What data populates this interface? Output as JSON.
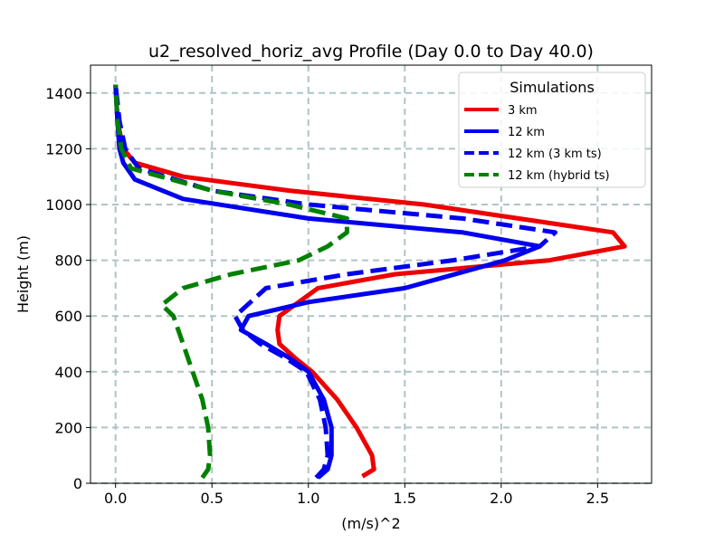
{
  "chart_data": {
    "type": "line",
    "title": "u2_resolved_horiz_avg Profile (Day 0.0 to Day 40.0)",
    "xlabel": "(m/s)^2",
    "ylabel": "Height (m)",
    "xlim": [
      -0.13,
      2.78
    ],
    "ylim": [
      0,
      1500
    ],
    "xticks": [
      0.0,
      0.5,
      1.0,
      1.5,
      2.0,
      2.5
    ],
    "xtick_labels": [
      "0.0",
      "0.5",
      "1.0",
      "1.5",
      "2.0",
      "2.5"
    ],
    "yticks": [
      0,
      200,
      400,
      600,
      800,
      1000,
      1200,
      1400
    ],
    "ytick_labels": [
      "0",
      "200",
      "400",
      "600",
      "800",
      "1000",
      "1200",
      "1400"
    ],
    "grid": true,
    "legend": {
      "title": "Simulations",
      "placement": "top-right"
    },
    "series": [
      {
        "name": "3 km",
        "color": "#ee0000",
        "dash": "solid",
        "points": [
          [
            1.28,
            25
          ],
          [
            1.34,
            50
          ],
          [
            1.33,
            100
          ],
          [
            1.25,
            200
          ],
          [
            1.15,
            300
          ],
          [
            1.02,
            400
          ],
          [
            0.93,
            450
          ],
          [
            0.85,
            500
          ],
          [
            0.84,
            550
          ],
          [
            0.85,
            600
          ],
          [
            1.05,
            700
          ],
          [
            1.45,
            750
          ],
          [
            2.25,
            800
          ],
          [
            2.64,
            850
          ],
          [
            2.58,
            900
          ],
          [
            1.6,
            1000
          ],
          [
            0.9,
            1050
          ],
          [
            0.35,
            1100
          ],
          [
            0.1,
            1150
          ],
          [
            0.04,
            1200
          ],
          [
            0.01,
            1300
          ],
          [
            0.0,
            1430
          ]
        ]
      },
      {
        "name": "12 km",
        "color": "#0000ee",
        "dash": "solid",
        "points": [
          [
            1.05,
            20
          ],
          [
            1.1,
            50
          ],
          [
            1.12,
            100
          ],
          [
            1.12,
            200
          ],
          [
            1.08,
            300
          ],
          [
            1.0,
            400
          ],
          [
            0.9,
            450
          ],
          [
            0.78,
            500
          ],
          [
            0.65,
            550
          ],
          [
            0.69,
            600
          ],
          [
            1.0,
            650
          ],
          [
            1.5,
            700
          ],
          [
            2.02,
            800
          ],
          [
            2.2,
            850
          ],
          [
            1.8,
            900
          ],
          [
            1.0,
            950
          ],
          [
            0.35,
            1020
          ],
          [
            0.1,
            1090
          ],
          [
            0.04,
            1150
          ],
          [
            0.02,
            1200
          ],
          [
            0.01,
            1300
          ],
          [
            0.0,
            1430
          ]
        ]
      },
      {
        "name": "12 km (3 km ts)",
        "color": "#0000ee",
        "dash": "dashed",
        "points": [
          [
            1.04,
            20
          ],
          [
            1.08,
            50
          ],
          [
            1.1,
            100
          ],
          [
            1.09,
            200
          ],
          [
            1.06,
            300
          ],
          [
            0.99,
            400
          ],
          [
            0.88,
            450
          ],
          [
            0.75,
            500
          ],
          [
            0.66,
            550
          ],
          [
            0.62,
            600
          ],
          [
            0.78,
            700
          ],
          [
            1.2,
            750
          ],
          [
            1.75,
            800
          ],
          [
            2.2,
            850
          ],
          [
            2.28,
            900
          ],
          [
            1.8,
            950
          ],
          [
            1.0,
            1000
          ],
          [
            0.5,
            1050
          ],
          [
            0.12,
            1130
          ],
          [
            0.05,
            1200
          ],
          [
            0.02,
            1300
          ],
          [
            0.0,
            1430
          ]
        ]
      },
      {
        "name": "12 km (hybrid ts)",
        "color": "#008000",
        "dash": "dashed",
        "points": [
          [
            0.45,
            20
          ],
          [
            0.48,
            50
          ],
          [
            0.49,
            100
          ],
          [
            0.48,
            200
          ],
          [
            0.45,
            300
          ],
          [
            0.4,
            400
          ],
          [
            0.35,
            500
          ],
          [
            0.3,
            600
          ],
          [
            0.24,
            640
          ],
          [
            0.35,
            700
          ],
          [
            0.6,
            750
          ],
          [
            0.95,
            800
          ],
          [
            1.1,
            850
          ],
          [
            1.2,
            900
          ],
          [
            1.2,
            950
          ],
          [
            0.9,
            1000
          ],
          [
            0.5,
            1050
          ],
          [
            0.08,
            1130
          ],
          [
            0.03,
            1200
          ],
          [
            0.01,
            1300
          ],
          [
            0.0,
            1430
          ]
        ]
      }
    ]
  }
}
